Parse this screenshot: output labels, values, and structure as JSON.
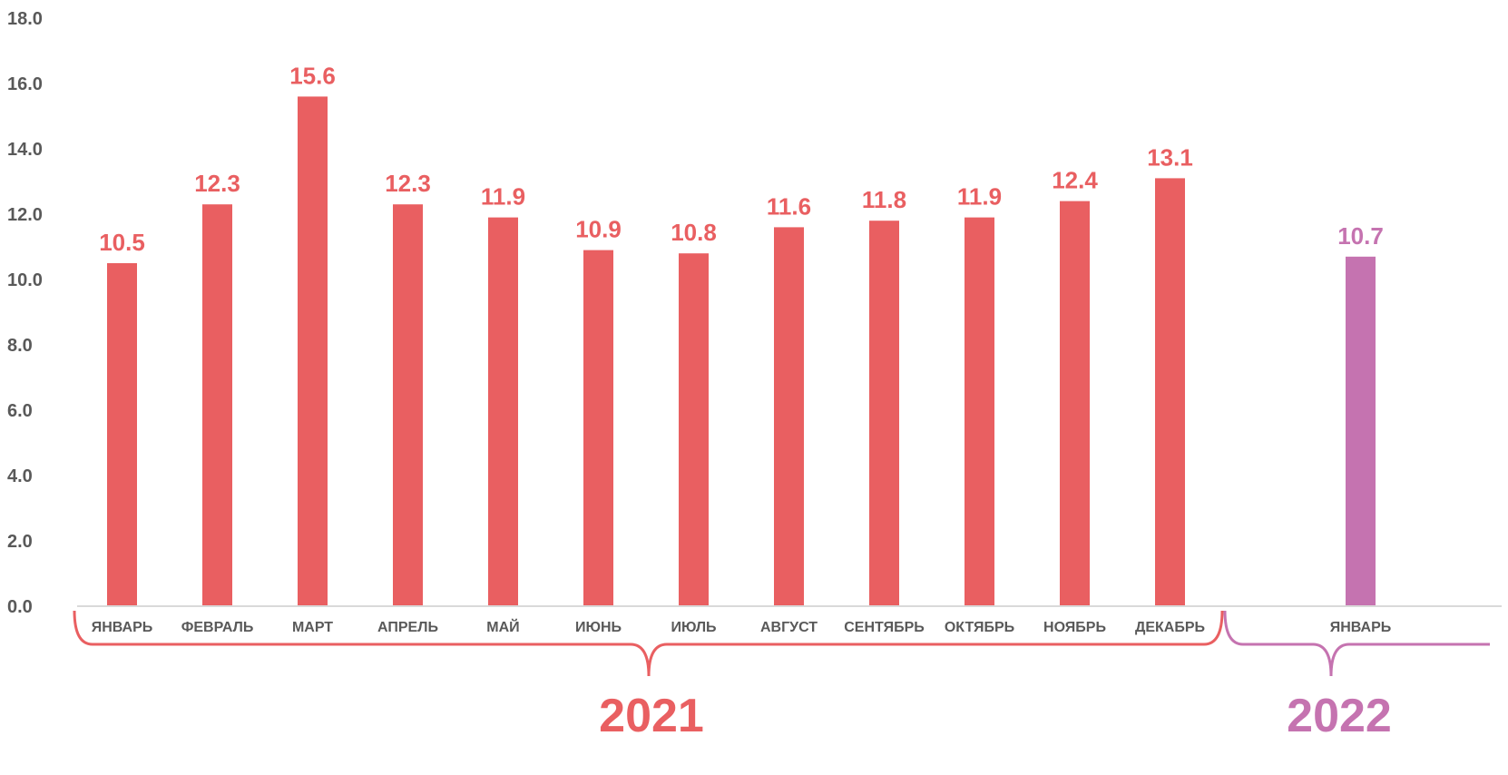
{
  "chart_data": {
    "type": "bar",
    "ylim": [
      0,
      18
    ],
    "yticks": [
      "0.0",
      "2.0",
      "4.0",
      "6.0",
      "8.0",
      "10.0",
      "12.0",
      "14.0",
      "16.0",
      "18.0"
    ],
    "grid": false,
    "colors": {
      "2021": "#E95F61",
      "2022": "#C573B0",
      "axis": "#D9D9D9",
      "tick_text": "#595959"
    },
    "groups": [
      {
        "year": "2021",
        "color": "#E95F61",
        "categories": [
          "ЯНВАРЬ",
          "ФЕВРАЛЬ",
          "МАРТ",
          "АПРЕЛЬ",
          "МАЙ",
          "ИЮНЬ",
          "ИЮЛЬ",
          "АВГУСТ",
          "СЕНТЯБРЬ",
          "ОКТЯБРЬ",
          "НОЯБРЬ",
          "ДЕКАБРЬ"
        ],
        "values": [
          10.5,
          12.3,
          15.6,
          12.3,
          11.9,
          10.9,
          10.8,
          11.6,
          11.8,
          11.9,
          12.4,
          13.1
        ],
        "labels": [
          "10.5",
          "12.3",
          "15.6",
          "12.3",
          "11.9",
          "10.9",
          "10.8",
          "11.6",
          "11.8",
          "11.9",
          "12.4",
          "13.1"
        ]
      },
      {
        "year": "2022",
        "color": "#C573B0",
        "categories": [
          "ЯНВАРЬ"
        ],
        "values": [
          10.7
        ],
        "labels": [
          "10.7"
        ]
      }
    ]
  }
}
